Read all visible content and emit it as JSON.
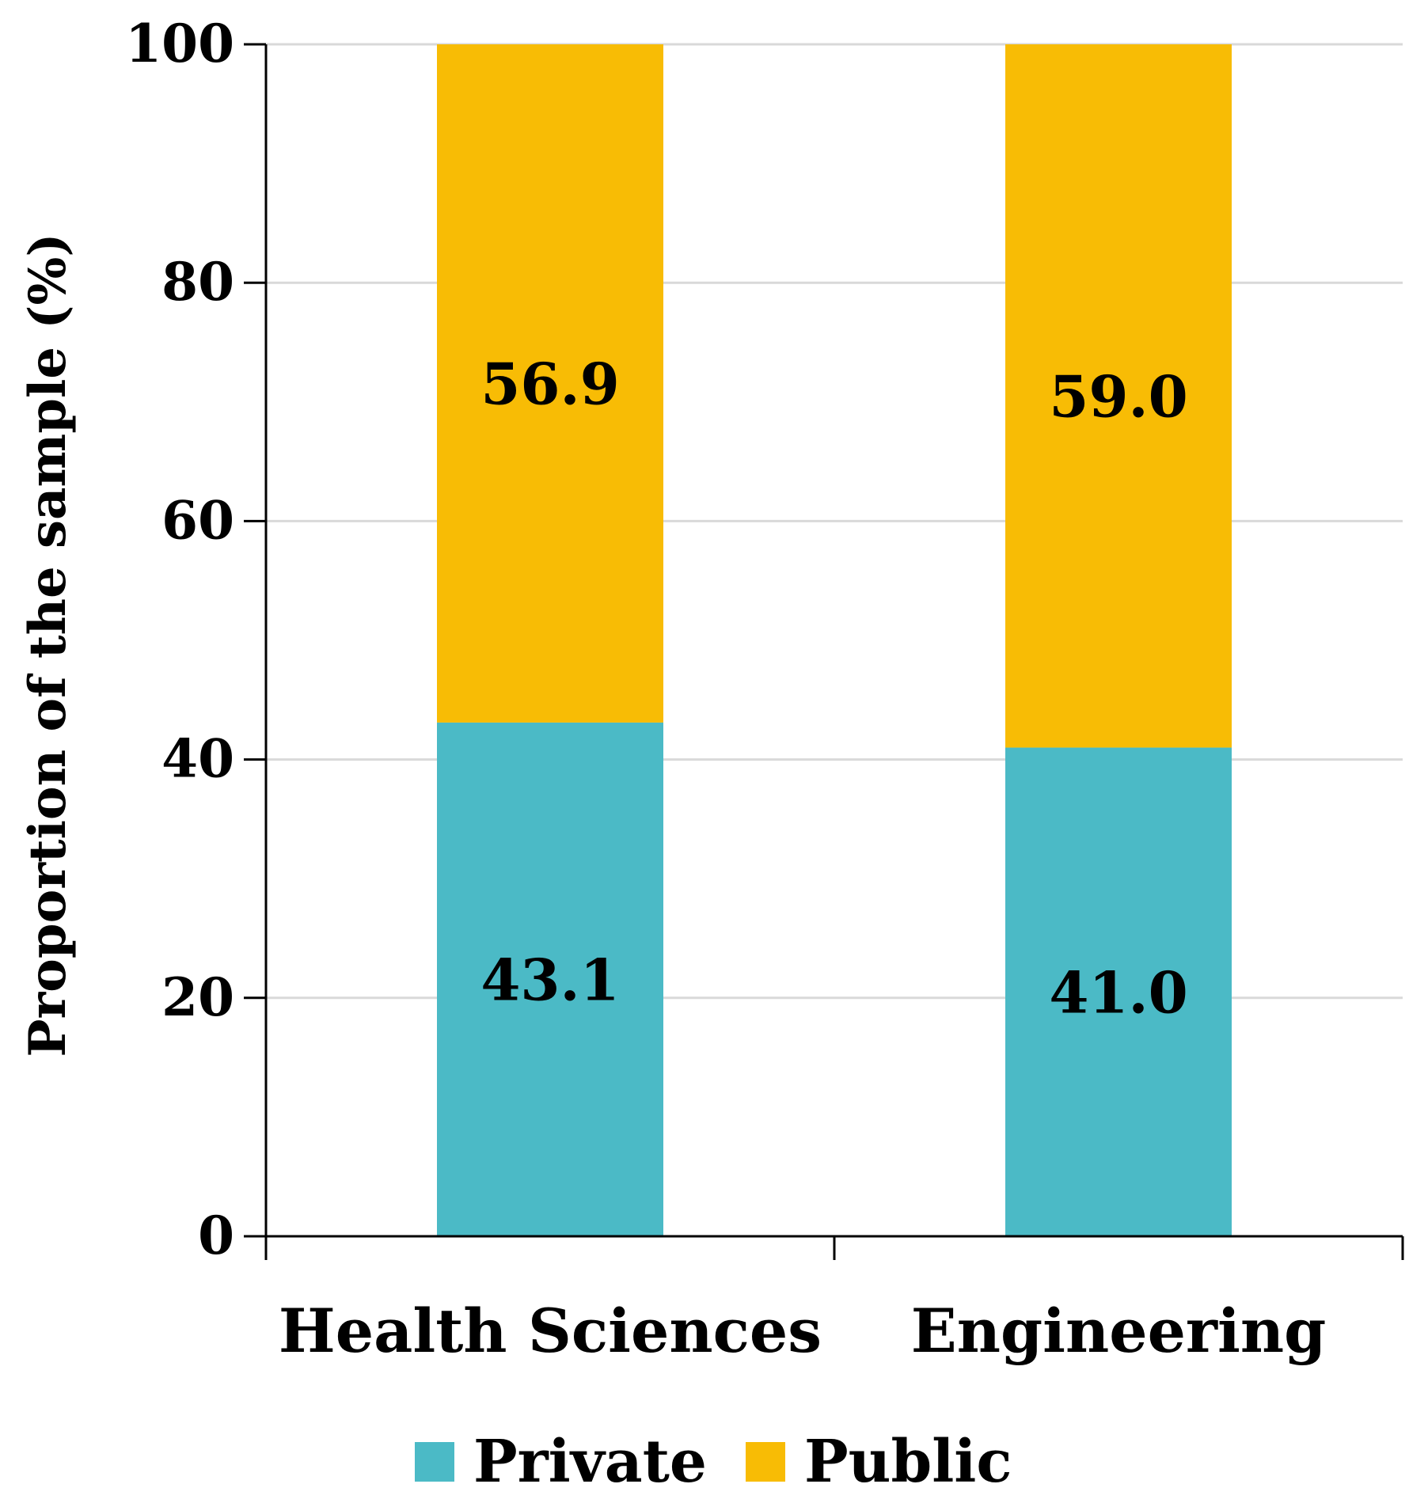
{
  "chart_data": {
    "type": "bar",
    "stacked": true,
    "title": "",
    "xlabel": "",
    "ylabel": "Proportion of the sample (%)",
    "ylim": [
      0,
      100
    ],
    "yticks": [
      0,
      20,
      40,
      60,
      80,
      100
    ],
    "ytick_labels": [
      "0",
      "20",
      "40",
      "60",
      "80",
      "100"
    ],
    "grid": true,
    "categories": [
      "Health Sciences",
      "Engineering"
    ],
    "series": [
      {
        "name": "Private",
        "color": "#4BBAC6",
        "values": [
          43.1,
          41.0
        ],
        "labels": [
          "43.1",
          "41.0"
        ]
      },
      {
        "name": "Public",
        "color": "#F8BC05",
        "values": [
          56.9,
          59.0
        ],
        "labels": [
          "56.9",
          "59.0"
        ]
      }
    ],
    "legend": {
      "position": "bottom"
    }
  }
}
